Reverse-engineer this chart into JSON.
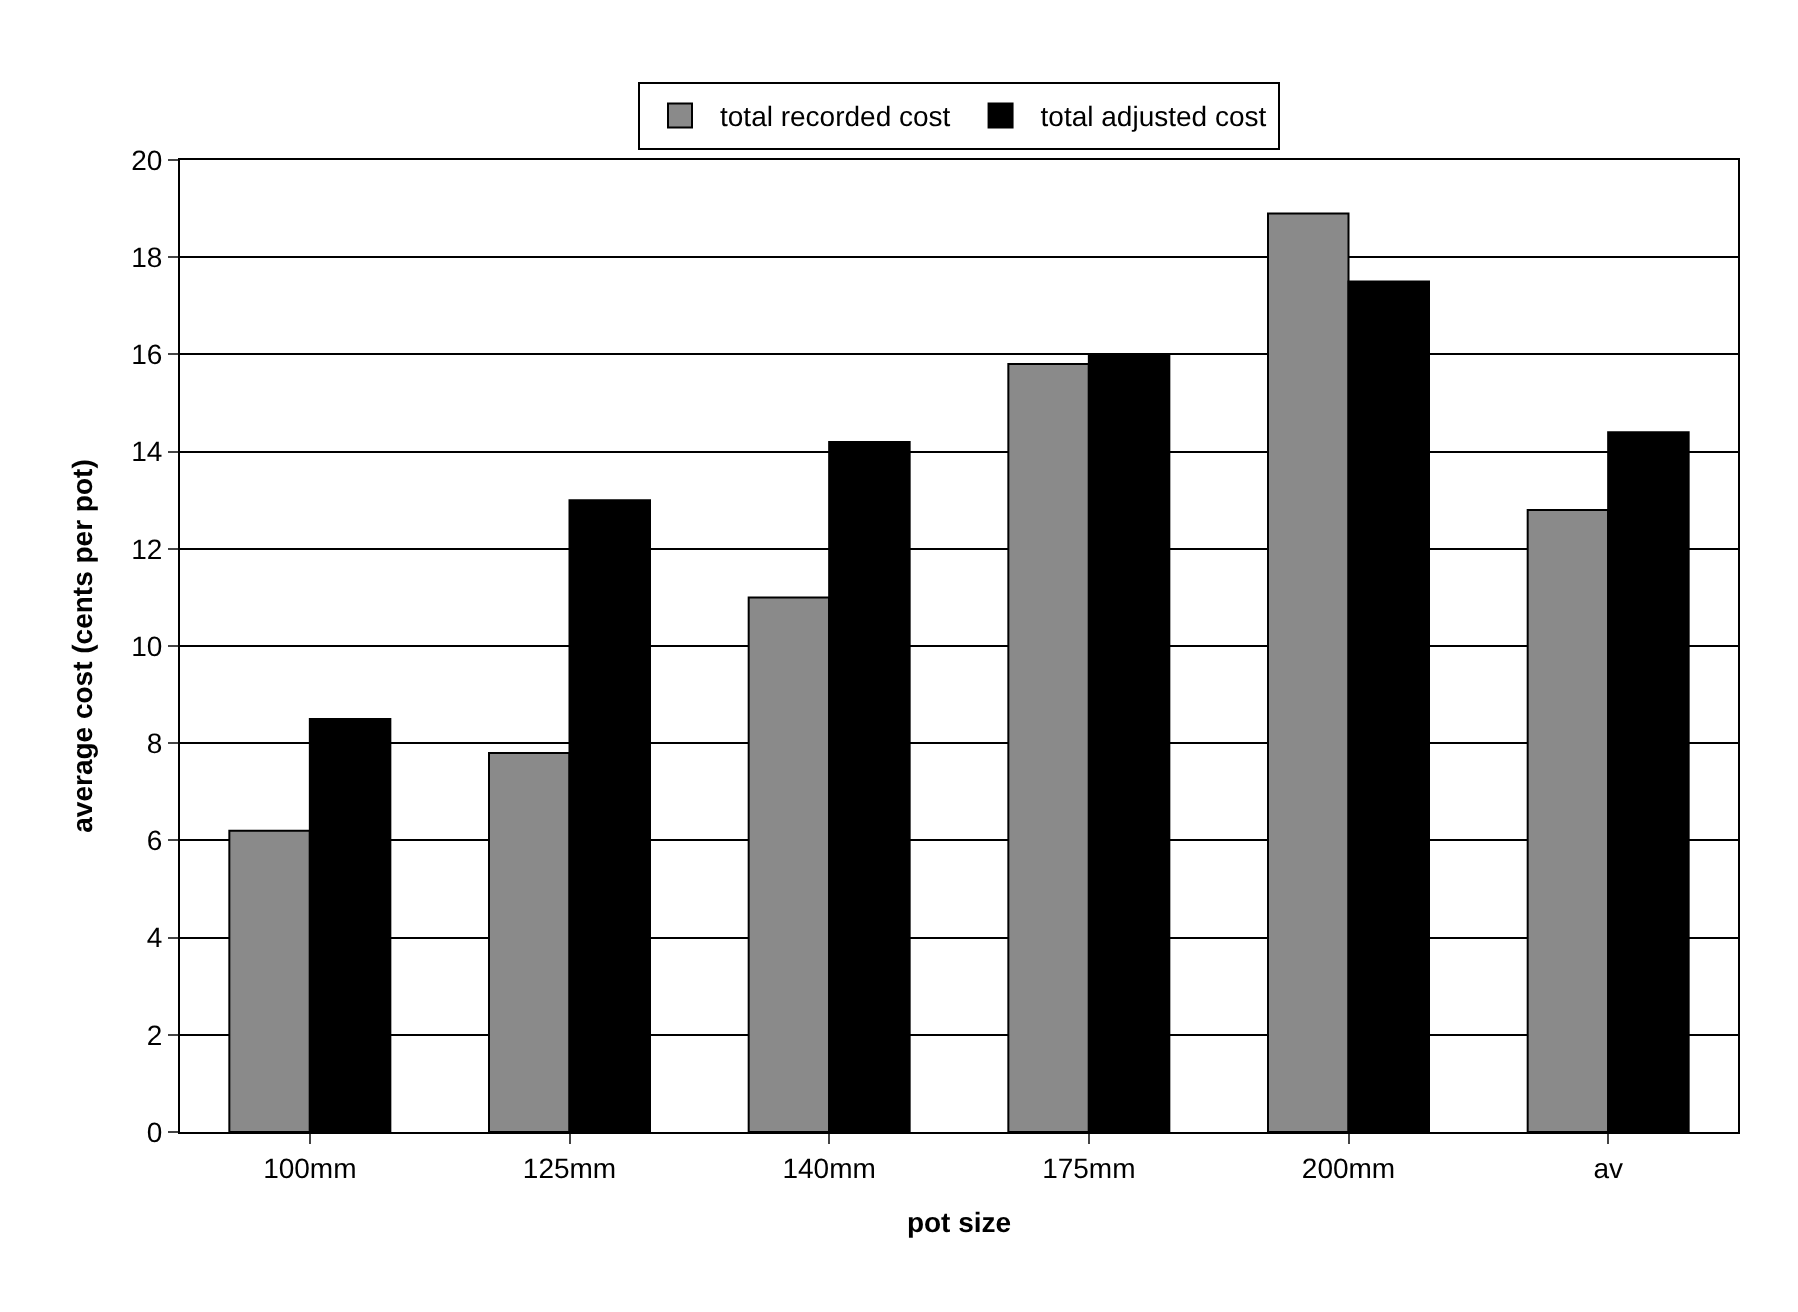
{
  "chart_data": {
    "type": "bar",
    "xlabel": "pot size",
    "ylabel": "average cost (cents per pot)",
    "categories": [
      "100mm",
      "125mm",
      "140mm",
      "175mm",
      "200mm",
      "av"
    ],
    "series": [
      {
        "name": "total recorded cost",
        "color": "#8a8a8a",
        "values": [
          6.2,
          7.8,
          11.0,
          15.8,
          18.9,
          12.8
        ]
      },
      {
        "name": "total adjusted cost",
        "color": "#000000",
        "values": [
          8.5,
          13.0,
          14.2,
          16.0,
          17.5,
          14.4
        ]
      }
    ],
    "ylim": [
      0,
      20
    ],
    "yticks": [
      0,
      2,
      4,
      6,
      8,
      10,
      12,
      14,
      16,
      18,
      20
    ],
    "grid": "y",
    "legend": "top"
  }
}
